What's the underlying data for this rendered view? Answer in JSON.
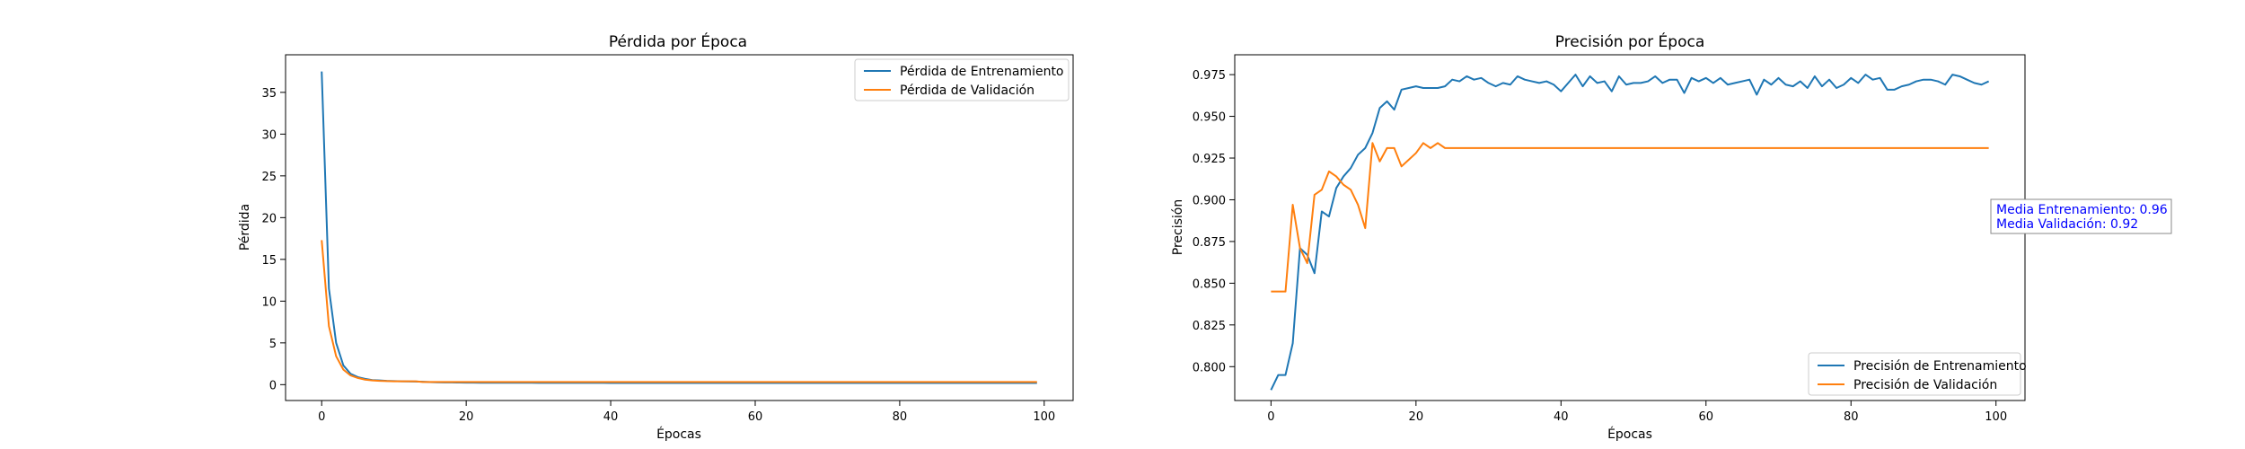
{
  "chart_data": [
    {
      "type": "line",
      "title": "Pérdida por Época",
      "xlabel": "Épocas",
      "ylabel": "Pérdida",
      "xlim": [
        -5,
        104
      ],
      "ylim": [
        -1.9,
        39.5
      ],
      "xticks": [
        0,
        20,
        40,
        60,
        80,
        100
      ],
      "yticks": [
        0,
        5,
        10,
        15,
        20,
        25,
        30,
        35
      ],
      "legend_position": "top-right",
      "series": [
        {
          "name": "Pérdida de Entrenamiento",
          "color": "#1f77b4",
          "x": [
            0,
            1,
            2,
            3,
            4,
            5,
            6,
            7,
            8,
            9,
            10,
            11,
            12,
            13,
            14,
            15,
            16,
            17,
            18,
            19,
            20,
            21,
            22,
            23,
            24,
            25,
            26,
            27,
            28,
            29,
            30,
            31,
            32,
            33,
            34,
            35,
            36,
            37,
            38,
            39,
            40,
            41,
            42,
            43,
            44,
            45,
            46,
            47,
            48,
            49,
            50,
            51,
            52,
            53,
            54,
            55,
            56,
            57,
            58,
            59,
            60,
            61,
            62,
            63,
            64,
            65,
            66,
            67,
            68,
            69,
            70,
            71,
            72,
            73,
            74,
            75,
            76,
            77,
            78,
            79,
            80,
            81,
            82,
            83,
            84,
            85,
            86,
            87,
            88,
            89,
            90,
            91,
            92,
            93,
            94,
            95,
            96,
            97,
            98,
            99
          ],
          "values": [
            37.5,
            11.5,
            5.0,
            2.3,
            1.3,
            0.9,
            0.7,
            0.55,
            0.5,
            0.45,
            0.42,
            0.4,
            0.38,
            0.37,
            0.35,
            0.3,
            0.28,
            0.27,
            0.26,
            0.25,
            0.24,
            0.24,
            0.23,
            0.23,
            0.23,
            0.22,
            0.22,
            0.22,
            0.22,
            0.22,
            0.21,
            0.21,
            0.21,
            0.21,
            0.21,
            0.21,
            0.21,
            0.21,
            0.21,
            0.21,
            0.2,
            0.2,
            0.2,
            0.2,
            0.2,
            0.2,
            0.2,
            0.2,
            0.2,
            0.2,
            0.2,
            0.2,
            0.2,
            0.2,
            0.2,
            0.2,
            0.2,
            0.2,
            0.2,
            0.2,
            0.2,
            0.2,
            0.2,
            0.2,
            0.2,
            0.2,
            0.2,
            0.2,
            0.2,
            0.2,
            0.2,
            0.2,
            0.2,
            0.2,
            0.2,
            0.2,
            0.2,
            0.2,
            0.2,
            0.2,
            0.2,
            0.2,
            0.2,
            0.2,
            0.2,
            0.2,
            0.2,
            0.2,
            0.2,
            0.2,
            0.2,
            0.2,
            0.2,
            0.2,
            0.2,
            0.2,
            0.2,
            0.2,
            0.2,
            0.2
          ]
        },
        {
          "name": "Pérdida de Validación",
          "color": "#ff7f0e",
          "x": [
            0,
            1,
            2,
            3,
            4,
            5,
            6,
            7,
            8,
            9,
            10,
            11,
            12,
            13,
            14,
            15,
            16,
            17,
            18,
            19,
            20,
            21,
            22,
            23,
            24,
            25,
            26,
            27,
            28,
            29,
            30,
            31,
            32,
            33,
            34,
            35,
            36,
            37,
            38,
            39,
            40,
            41,
            42,
            43,
            44,
            45,
            46,
            47,
            48,
            49,
            50,
            51,
            52,
            53,
            54,
            55,
            56,
            57,
            58,
            59,
            60,
            61,
            62,
            63,
            64,
            65,
            66,
            67,
            68,
            69,
            70,
            71,
            72,
            73,
            74,
            75,
            76,
            77,
            78,
            79,
            80,
            81,
            82,
            83,
            84,
            85,
            86,
            87,
            88,
            89,
            90,
            91,
            92,
            93,
            94,
            95,
            96,
            97,
            98,
            99
          ],
          "values": [
            17.3,
            7.0,
            3.4,
            1.8,
            1.1,
            0.8,
            0.6,
            0.5,
            0.45,
            0.42,
            0.4,
            0.4,
            0.4,
            0.4,
            0.32,
            0.32,
            0.32,
            0.32,
            0.32,
            0.32,
            0.32,
            0.32,
            0.32,
            0.32,
            0.32,
            0.32,
            0.32,
            0.32,
            0.32,
            0.32,
            0.32,
            0.32,
            0.32,
            0.32,
            0.32,
            0.32,
            0.32,
            0.32,
            0.32,
            0.32,
            0.32,
            0.32,
            0.32,
            0.32,
            0.32,
            0.32,
            0.32,
            0.32,
            0.32,
            0.32,
            0.32,
            0.32,
            0.32,
            0.32,
            0.32,
            0.32,
            0.32,
            0.32,
            0.32,
            0.32,
            0.32,
            0.32,
            0.32,
            0.32,
            0.32,
            0.32,
            0.32,
            0.32,
            0.32,
            0.32,
            0.32,
            0.32,
            0.32,
            0.32,
            0.32,
            0.32,
            0.32,
            0.32,
            0.32,
            0.32,
            0.32,
            0.32,
            0.32,
            0.32,
            0.32,
            0.32,
            0.32,
            0.32,
            0.32,
            0.32,
            0.32,
            0.32,
            0.32,
            0.32,
            0.32,
            0.32,
            0.32,
            0.32,
            0.32,
            0.32
          ]
        }
      ]
    },
    {
      "type": "line",
      "title": "Precisión por Época",
      "xlabel": "Épocas",
      "ylabel": "Precisión",
      "xlim": [
        -5,
        104
      ],
      "ylim": [
        0.7797,
        0.9869
      ],
      "xticks": [
        0,
        20,
        40,
        60,
        80,
        100
      ],
      "yticks": [
        0.8,
        0.825,
        0.85,
        0.875,
        0.9,
        0.925,
        0.95,
        0.975
      ],
      "ytick_labels": [
        "0.800",
        "0.825",
        "0.850",
        "0.875",
        "0.900",
        "0.925",
        "0.950",
        "0.975"
      ],
      "legend_position": "bottom-right",
      "annotation": {
        "lines": [
          "Media Entrenamiento: 0.96",
          "Media Validación: 0.92"
        ],
        "color": "#0000ff"
      },
      "series": [
        {
          "name": "Precisión de Entrenamiento",
          "color": "#1f77b4",
          "x": [
            0,
            1,
            2,
            3,
            4,
            5,
            6,
            7,
            8,
            9,
            10,
            11,
            12,
            13,
            14,
            15,
            16,
            17,
            18,
            19,
            20,
            21,
            22,
            23,
            24,
            25,
            26,
            27,
            28,
            29,
            30,
            31,
            32,
            33,
            34,
            35,
            36,
            37,
            38,
            39,
            40,
            41,
            42,
            43,
            44,
            45,
            46,
            47,
            48,
            49,
            50,
            51,
            52,
            53,
            54,
            55,
            56,
            57,
            58,
            59,
            60,
            61,
            62,
            63,
            64,
            65,
            66,
            67,
            68,
            69,
            70,
            71,
            72,
            73,
            74,
            75,
            76,
            77,
            78,
            79,
            80,
            81,
            82,
            83,
            84,
            85,
            86,
            87,
            88,
            89,
            90,
            91,
            92,
            93,
            94,
            95,
            96,
            97,
            98,
            99
          ],
          "values": [
            0.786,
            0.795,
            0.795,
            0.814,
            0.871,
            0.867,
            0.856,
            0.893,
            0.89,
            0.907,
            0.914,
            0.919,
            0.927,
            0.931,
            0.94,
            0.955,
            0.959,
            0.954,
            0.966,
            0.967,
            0.968,
            0.967,
            0.967,
            0.967,
            0.968,
            0.972,
            0.971,
            0.974,
            0.972,
            0.973,
            0.97,
            0.968,
            0.97,
            0.969,
            0.974,
            0.972,
            0.971,
            0.97,
            0.971,
            0.969,
            0.965,
            0.97,
            0.975,
            0.968,
            0.974,
            0.97,
            0.971,
            0.965,
            0.974,
            0.969,
            0.97,
            0.97,
            0.971,
            0.974,
            0.97,
            0.972,
            0.972,
            0.964,
            0.973,
            0.971,
            0.973,
            0.97,
            0.973,
            0.969,
            0.97,
            0.971,
            0.972,
            0.963,
            0.972,
            0.969,
            0.973,
            0.969,
            0.968,
            0.971,
            0.967,
            0.974,
            0.968,
            0.972,
            0.967,
            0.969,
            0.973,
            0.97,
            0.975,
            0.972,
            0.973,
            0.966,
            0.966,
            0.968,
            0.969,
            0.971,
            0.972,
            0.972,
            0.971,
            0.969,
            0.975,
            0.974,
            0.972,
            0.97,
            0.969,
            0.971
          ]
        },
        {
          "name": "Precisión de Validación",
          "color": "#ff7f0e",
          "x": [
            0,
            1,
            2,
            3,
            4,
            5,
            6,
            7,
            8,
            9,
            10,
            11,
            12,
            13,
            14,
            15,
            16,
            17,
            18,
            19,
            20,
            21,
            22,
            23,
            24,
            25,
            26,
            27,
            28,
            29,
            30,
            31,
            32,
            33,
            34,
            35,
            36,
            37,
            38,
            39,
            40,
            41,
            42,
            43,
            44,
            45,
            46,
            47,
            48,
            49,
            50,
            51,
            52,
            53,
            54,
            55,
            56,
            57,
            58,
            59,
            60,
            61,
            62,
            63,
            64,
            65,
            66,
            67,
            68,
            69,
            70,
            71,
            72,
            73,
            74,
            75,
            76,
            77,
            78,
            79,
            80,
            81,
            82,
            83,
            84,
            85,
            86,
            87,
            88,
            89,
            90,
            91,
            92,
            93,
            94,
            95,
            96,
            97,
            98,
            99
          ],
          "values": [
            0.845,
            0.845,
            0.845,
            0.897,
            0.871,
            0.862,
            0.903,
            0.906,
            0.917,
            0.914,
            0.909,
            0.906,
            0.897,
            0.883,
            0.934,
            0.923,
            0.931,
            0.931,
            0.92,
            0.924,
            0.928,
            0.934,
            0.931,
            0.934,
            0.931,
            0.931,
            0.931,
            0.931,
            0.931,
            0.931,
            0.931,
            0.931,
            0.931,
            0.931,
            0.931,
            0.931,
            0.931,
            0.931,
            0.931,
            0.931,
            0.931,
            0.931,
            0.931,
            0.931,
            0.931,
            0.931,
            0.931,
            0.931,
            0.931,
            0.931,
            0.931,
            0.931,
            0.931,
            0.931,
            0.931,
            0.931,
            0.931,
            0.931,
            0.931,
            0.931,
            0.931,
            0.931,
            0.931,
            0.931,
            0.931,
            0.931,
            0.931,
            0.931,
            0.931,
            0.931,
            0.931,
            0.931,
            0.931,
            0.931,
            0.931,
            0.931,
            0.931,
            0.931,
            0.931,
            0.931,
            0.931,
            0.931,
            0.931,
            0.931,
            0.931,
            0.931,
            0.931,
            0.931,
            0.931,
            0.931,
            0.931,
            0.931,
            0.931,
            0.931,
            0.931,
            0.931,
            0.931,
            0.931,
            0.931,
            0.931
          ]
        }
      ]
    }
  ]
}
